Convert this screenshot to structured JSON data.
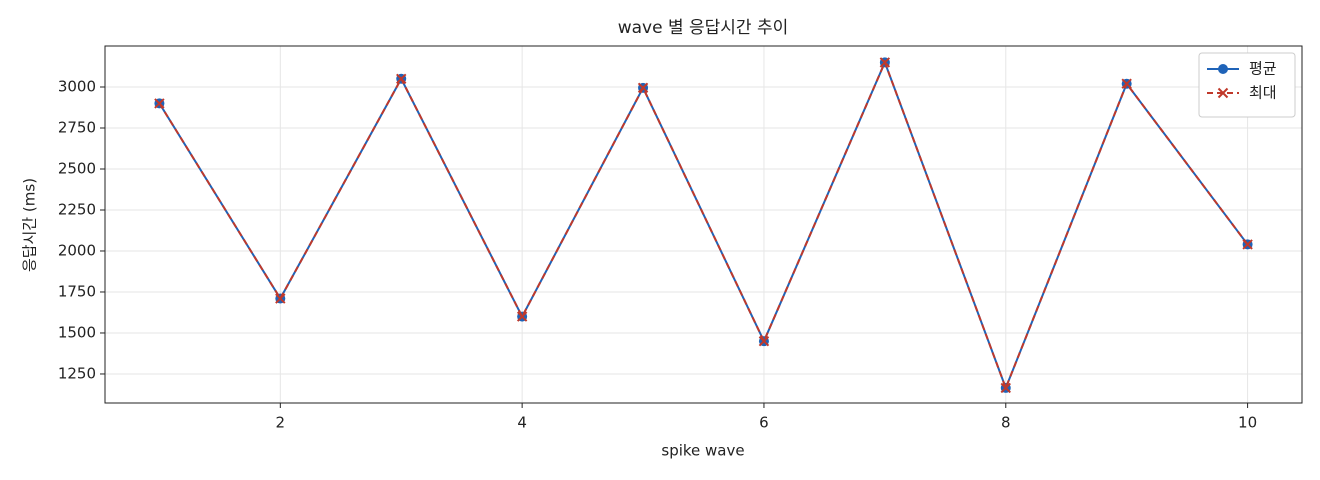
{
  "chart_data": {
    "type": "line",
    "title": "wave 별 응답시간 추이",
    "x_label": "spike wave",
    "y_label": "응답시간 (ms)",
    "x": [
      1,
      2,
      3,
      4,
      5,
      6,
      7,
      8,
      9,
      10
    ],
    "series": [
      {
        "name": "평균",
        "color": "#1f63b8",
        "marker": "circle",
        "dash": false,
        "values": [
          2900,
          1710,
          3050,
          1600,
          2995,
          1450,
          3150,
          1165,
          3020,
          2040
        ]
      },
      {
        "name": "최대",
        "color": "#c0392b",
        "marker": "x",
        "dash": true,
        "values": [
          2900,
          1710,
          3050,
          1600,
          2995,
          1450,
          3150,
          1165,
          3020,
          2040
        ]
      }
    ],
    "xlim": [
      0.55,
      10.45
    ],
    "ylim": [
      1073,
      3250
    ],
    "xticks": [
      2,
      4,
      6,
      8,
      10
    ],
    "yticks": [
      1250,
      1500,
      1750,
      2000,
      2250,
      2500,
      2750,
      3000
    ],
    "grid": true,
    "legend": "upper right"
  }
}
